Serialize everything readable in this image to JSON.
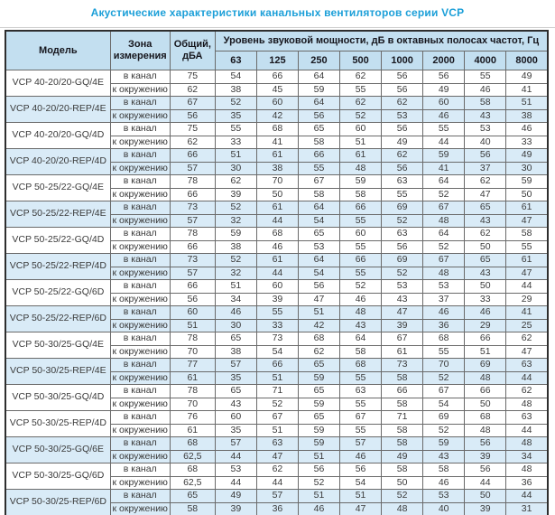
{
  "title": "Акустические характеристики канальных вентиляторов  серии VCP",
  "colors": {
    "title_blue": "#1b9fd8",
    "header_bg": "#c3dff0",
    "highlight_row_bg": "#d9ebf7",
    "border_dark": "#2e2e2e",
    "border_light": "#6a6a6a",
    "text": "#3a3a3a"
  },
  "table": {
    "headers": {
      "model": "Модель",
      "zone": "Зона измерения",
      "total": "Общий, дБА",
      "group": "Уровень звуковой мощности, дБ в октавных полосах частот, Гц",
      "freqs": [
        "63",
        "125",
        "250",
        "500",
        "1000",
        "2000",
        "4000",
        "8000"
      ]
    },
    "zone_in_label": "в канал",
    "zone_out_label": "к окружению",
    "models": [
      {
        "name": "VCP 40-20/20-GQ/4E",
        "highlight": false,
        "in": {
          "total": "75",
          "bands": [
            54,
            66,
            64,
            62,
            56,
            56,
            55,
            49
          ]
        },
        "out": {
          "total": "62",
          "bands": [
            38,
            45,
            59,
            55,
            56,
            49,
            46,
            41
          ]
        }
      },
      {
        "name": "VCP 40-20/20-REP/4E",
        "highlight": true,
        "in": {
          "total": "67",
          "bands": [
            52,
            60,
            64,
            62,
            62,
            60,
            58,
            51
          ]
        },
        "out": {
          "total": "56",
          "bands": [
            35,
            42,
            56,
            52,
            53,
            46,
            43,
            38
          ]
        }
      },
      {
        "name": "VCP 40-20/20-GQ/4D",
        "highlight": false,
        "in": {
          "total": "75",
          "bands": [
            55,
            68,
            65,
            60,
            56,
            55,
            53,
            46
          ]
        },
        "out": {
          "total": "62",
          "bands": [
            33,
            41,
            58,
            51,
            49,
            44,
            40,
            33
          ]
        }
      },
      {
        "name": "VCP 40-20/20-REP/4D",
        "highlight": true,
        "in": {
          "total": "66",
          "bands": [
            51,
            61,
            66,
            61,
            62,
            59,
            56,
            49
          ]
        },
        "out": {
          "total": "57",
          "bands": [
            30,
            38,
            55,
            48,
            56,
            41,
            37,
            30
          ]
        }
      },
      {
        "name": "VCP 50-25/22-GQ/4E",
        "highlight": false,
        "in": {
          "total": "78",
          "bands": [
            62,
            70,
            67,
            59,
            63,
            64,
            62,
            59
          ]
        },
        "out": {
          "total": "66",
          "bands": [
            39,
            50,
            58,
            58,
            55,
            52,
            47,
            50
          ]
        }
      },
      {
        "name": "VCP 50-25/22-REP/4E",
        "highlight": true,
        "in": {
          "total": "73",
          "bands": [
            52,
            61,
            64,
            66,
            69,
            67,
            65,
            61
          ]
        },
        "out": {
          "total": "57",
          "bands": [
            32,
            44,
            54,
            55,
            52,
            48,
            43,
            47
          ]
        }
      },
      {
        "name": "VCP 50-25/22-GQ/4D",
        "highlight": false,
        "in": {
          "total": "78",
          "bands": [
            59,
            68,
            65,
            60,
            63,
            64,
            62,
            58
          ]
        },
        "out": {
          "total": "66",
          "bands": [
            38,
            46,
            53,
            55,
            56,
            52,
            50,
            55
          ]
        }
      },
      {
        "name": "VCP 50-25/22-REP/4D",
        "highlight": true,
        "in": {
          "total": "73",
          "bands": [
            52,
            61,
            64,
            66,
            69,
            67,
            65,
            61
          ]
        },
        "out": {
          "total": "57",
          "bands": [
            32,
            44,
            54,
            55,
            52,
            48,
            43,
            47
          ]
        }
      },
      {
        "name": "VCP 50-25/22-GQ/6D",
        "highlight": false,
        "in": {
          "total": "66",
          "bands": [
            51,
            60,
            56,
            52,
            53,
            53,
            50,
            44
          ]
        },
        "out": {
          "total": "56",
          "bands": [
            34,
            39,
            47,
            46,
            43,
            37,
            33,
            29
          ]
        }
      },
      {
        "name": "VCP 50-25/22-REP/6D",
        "highlight": true,
        "in": {
          "total": "60",
          "bands": [
            46,
            55,
            51,
            48,
            47,
            46,
            46,
            41
          ]
        },
        "out": {
          "total": "51",
          "bands": [
            30,
            33,
            42,
            43,
            39,
            36,
            29,
            25
          ]
        }
      },
      {
        "name": "VCP 50-30/25-GQ/4E",
        "highlight": false,
        "in": {
          "total": "78",
          "bands": [
            65,
            73,
            68,
            64,
            67,
            68,
            66,
            62
          ]
        },
        "out": {
          "total": "70",
          "bands": [
            38,
            54,
            62,
            58,
            61,
            55,
            51,
            47
          ]
        }
      },
      {
        "name": "VCP 50-30/25-REP/4E",
        "highlight": true,
        "in": {
          "total": "77",
          "bands": [
            57,
            66,
            65,
            68,
            73,
            70,
            69,
            63
          ]
        },
        "out": {
          "total": "61",
          "bands": [
            35,
            51,
            59,
            55,
            58,
            52,
            48,
            44
          ]
        }
      },
      {
        "name": "VCP 50-30/25-GQ/4D",
        "highlight": false,
        "in": {
          "total": "78",
          "bands": [
            65,
            71,
            65,
            63,
            66,
            67,
            66,
            62
          ]
        },
        "out": {
          "total": "70",
          "bands": [
            43,
            52,
            59,
            55,
            58,
            54,
            50,
            48
          ]
        }
      },
      {
        "name": "VCP 50-30/25-REP/4D",
        "highlight": false,
        "in": {
          "total": "76",
          "bands": [
            60,
            67,
            65,
            67,
            71,
            69,
            68,
            63
          ]
        },
        "out": {
          "total": "61",
          "bands": [
            35,
            51,
            59,
            55,
            58,
            52,
            48,
            44
          ]
        }
      },
      {
        "name": "VCP 50-30/25-GQ/6E",
        "highlight": true,
        "in": {
          "total": "68",
          "bands": [
            57,
            63,
            59,
            57,
            58,
            59,
            56,
            48
          ]
        },
        "out": {
          "total": "62,5",
          "bands": [
            44,
            47,
            51,
            46,
            49,
            43,
            39,
            34
          ]
        }
      },
      {
        "name": "VCP 50-30/25-GQ/6D",
        "highlight": false,
        "in": {
          "total": "68",
          "bands": [
            53,
            62,
            56,
            56,
            58,
            58,
            56,
            48
          ]
        },
        "out": {
          "total": "62,5",
          "bands": [
            44,
            44,
            52,
            54,
            50,
            46,
            44,
            36
          ]
        }
      },
      {
        "name": "VCP 50-30/25-REP/6D",
        "highlight": true,
        "in": {
          "total": "65",
          "bands": [
            49,
            57,
            51,
            51,
            52,
            53,
            50,
            44
          ]
        },
        "out": {
          "total": "58",
          "bands": [
            39,
            36,
            46,
            47,
            48,
            40,
            39,
            31
          ]
        }
      }
    ]
  }
}
